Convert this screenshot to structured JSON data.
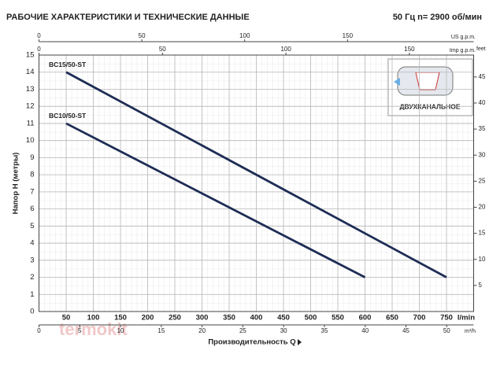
{
  "chart_data": {
    "type": "line",
    "title": "РАБОЧИЕ ХАРАКТЕРИСТИКИ И ТЕХНИЧЕСКИЕ ДАННЫЕ",
    "subtitle": "50 Гц   n= 2900 об/мин",
    "xlabel": "Производительность Q",
    "xunit": "l/min",
    "ylabel": "Напор H (метры)",
    "xlim": [
      0,
      800
    ],
    "xticks": [
      50,
      100,
      150,
      200,
      250,
      300,
      350,
      400,
      450,
      500,
      550,
      600,
      650,
      700,
      750
    ],
    "ylim": [
      0,
      15
    ],
    "yticks": [
      0,
      1,
      2,
      3,
      4,
      5,
      6,
      7,
      8,
      9,
      10,
      11,
      12,
      13,
      14,
      15
    ],
    "grid": true,
    "series": [
      {
        "name": "BC15/50-ST",
        "color": "#1e2d55",
        "x": [
          50,
          750
        ],
        "values": [
          14,
          2
        ]
      },
      {
        "name": "BC10/50-ST",
        "color": "#1e2d55",
        "x": [
          50,
          600
        ],
        "values": [
          11,
          2
        ]
      }
    ],
    "secondary_axes": [
      {
        "label": "US g.p.m.",
        "position": "top",
        "lim": [
          0,
          211.3
        ],
        "ticks": [
          0,
          50,
          100,
          150
        ]
      },
      {
        "label": "Imp g.p.m.",
        "position": "top2",
        "lim": [
          0,
          176
        ],
        "ticks": [
          0,
          50,
          100,
          150
        ]
      },
      {
        "label": "m³/h",
        "position": "bottom2",
        "lim": [
          0,
          53.3
        ],
        "ticks": [
          0,
          5,
          10,
          15,
          20,
          25,
          30,
          35,
          40,
          45,
          50
        ]
      },
      {
        "label": "feet",
        "position": "right",
        "lim": [
          0,
          49.2
        ],
        "ticks": [
          5,
          10,
          15,
          20,
          25,
          30,
          35,
          40,
          45
        ]
      }
    ],
    "inset_label": "ДВУХКАНАЛЬНОЕ",
    "watermark": "termokit"
  }
}
